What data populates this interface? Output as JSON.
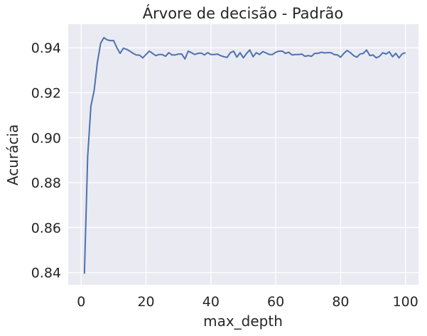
{
  "chart_data": {
    "type": "line",
    "title": "Árvore de decisão - Padrão",
    "xlabel": "max_depth",
    "ylabel": "Acurácia",
    "xlim": [
      -4,
      104
    ],
    "ylim": [
      0.8345,
      0.9505
    ],
    "xticks": [
      0,
      20,
      40,
      60,
      80,
      100
    ],
    "xtick_labels": [
      "0",
      "20",
      "40",
      "60",
      "80",
      "100"
    ],
    "yticks": [
      0.84,
      0.86,
      0.88,
      0.9,
      0.92,
      0.94
    ],
    "ytick_labels": [
      "0.84",
      "0.86",
      "0.88",
      "0.90",
      "0.92",
      "0.94"
    ],
    "grid": true,
    "legend": "none",
    "colors": {
      "background": "#eaeaf2",
      "grid": "#ffffff",
      "line": "#4c72b0"
    },
    "series": [
      {
        "x": [
          1,
          2,
          3,
          4,
          5,
          6,
          7,
          8,
          9,
          10,
          11,
          12,
          13,
          14,
          15,
          16,
          17,
          18,
          19,
          20,
          21,
          22,
          23,
          24,
          25,
          26,
          27,
          28,
          29,
          30,
          31,
          32,
          33,
          34,
          35,
          36,
          37,
          38,
          39,
          40,
          41,
          42,
          43,
          44,
          45,
          46,
          47,
          48,
          49,
          50,
          51,
          52,
          53,
          54,
          55,
          56,
          57,
          58,
          59,
          60,
          61,
          62,
          63,
          64,
          65,
          66,
          67,
          68,
          69,
          70,
          71,
          72,
          73,
          74,
          75,
          76,
          77,
          78,
          79,
          80,
          81,
          82,
          83,
          84,
          85,
          86,
          87,
          88,
          89,
          90,
          91,
          92,
          93,
          94,
          95,
          96,
          97,
          98,
          99,
          100
        ],
        "values": [
          0.8395,
          0.8915,
          0.914,
          0.921,
          0.9335,
          0.942,
          0.9445,
          0.9435,
          0.9432,
          0.9432,
          0.94,
          0.9375,
          0.9398,
          0.9393,
          0.9385,
          0.9375,
          0.9368,
          0.9367,
          0.9355,
          0.937,
          0.9385,
          0.9375,
          0.9365,
          0.937,
          0.937,
          0.9362,
          0.9378,
          0.9368,
          0.9368,
          0.9372,
          0.9372,
          0.935,
          0.9385,
          0.9378,
          0.937,
          0.9375,
          0.9376,
          0.9368,
          0.9378,
          0.937,
          0.937,
          0.9372,
          0.9365,
          0.936,
          0.9357,
          0.9378,
          0.9385,
          0.9358,
          0.9378,
          0.9355,
          0.9375,
          0.939,
          0.936,
          0.9378,
          0.937,
          0.9383,
          0.9377,
          0.937,
          0.937,
          0.938,
          0.9385,
          0.9385,
          0.9375,
          0.938,
          0.9368,
          0.937,
          0.937,
          0.9372,
          0.9362,
          0.9365,
          0.9362,
          0.9375,
          0.9375,
          0.938,
          0.9377,
          0.9378,
          0.9378,
          0.937,
          0.9368,
          0.9358,
          0.9375,
          0.9388,
          0.9378,
          0.9365,
          0.9358,
          0.9372,
          0.9375,
          0.939,
          0.9365,
          0.9368,
          0.9355,
          0.9362,
          0.9378,
          0.9372,
          0.9382,
          0.936,
          0.9375,
          0.9355,
          0.9373,
          0.9378
        ]
      }
    ]
  }
}
